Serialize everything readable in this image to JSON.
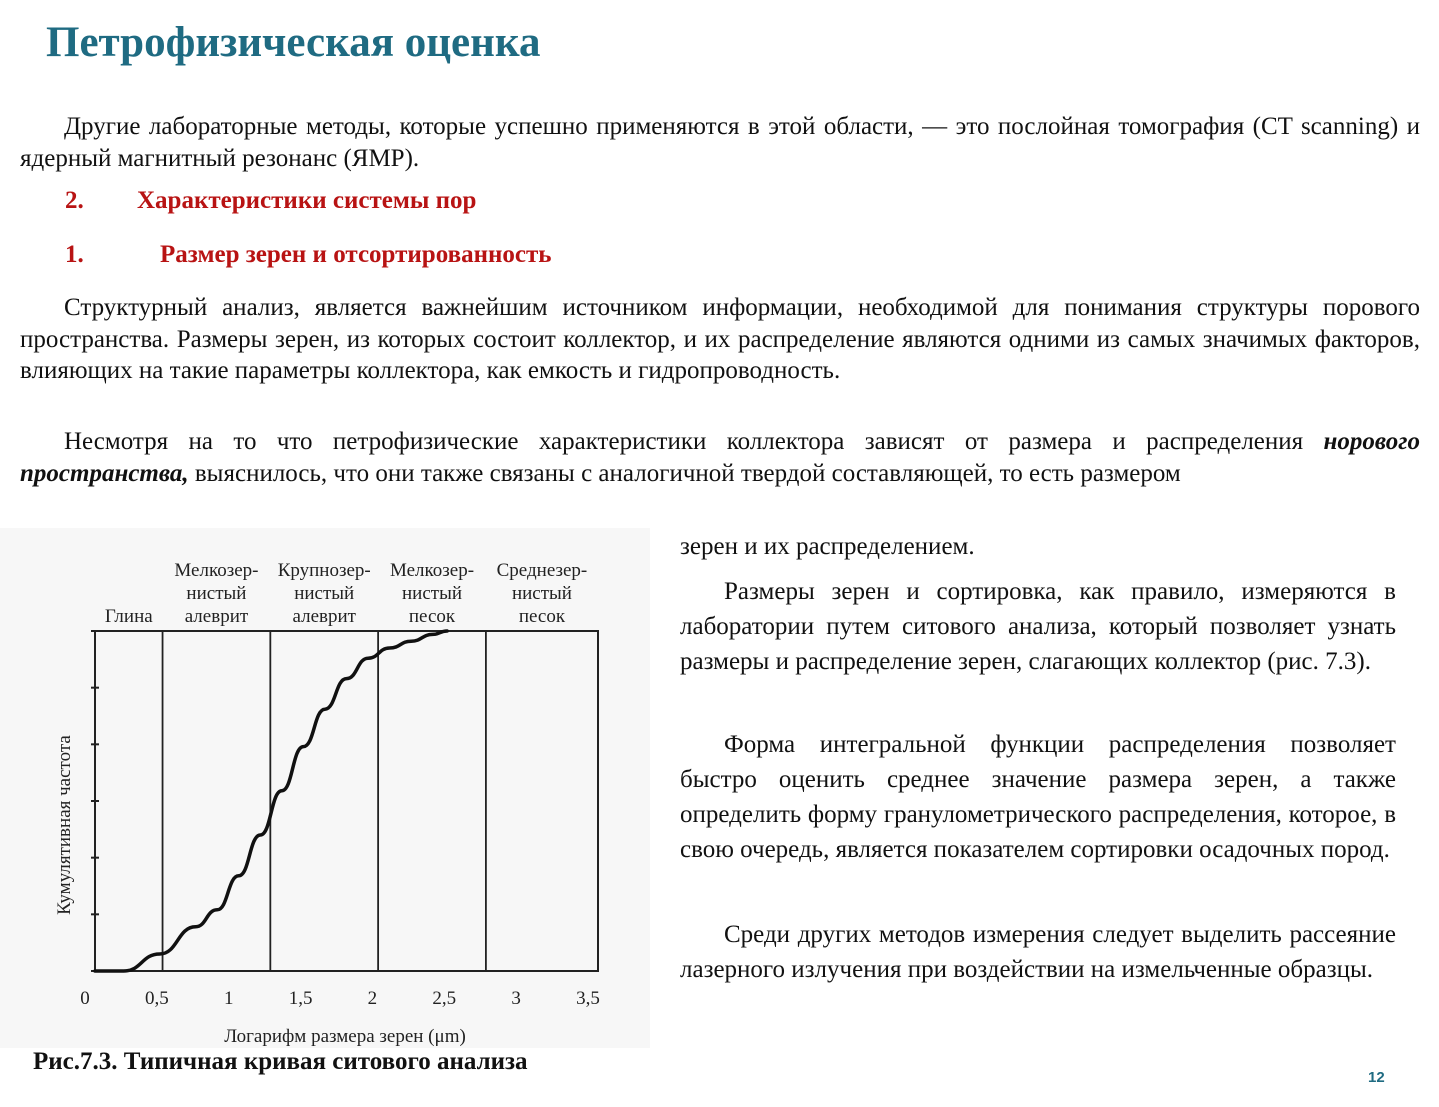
{
  "title": "Петрофизическая оценка",
  "intro": {
    "text": "Другие лабораторные методы, которые успешно применяются в этой области, — это послойная томография (CT scanning) и ядерный магнитный резонанс (ЯМР)."
  },
  "heading_1": {
    "number": "2.",
    "text": "Характеристики системы пор"
  },
  "heading_2": {
    "number": "1.",
    "text": "Размер зерен и отсортированность"
  },
  "para_structure": {
    "text": "Структурный анализ, является важнейшим источником информации, необходимой для понимания структуры порового пространства. Размеры зерен, из которых состоит коллектор, и их распределение являются одними из самых значимых факторов, влияющих на такие параметры коллектора, как емкость и гидропроводность."
  },
  "para_despite": {
    "lead": "Несмотря на то что петрофизические характеристики коллектора зависят от размера и распределения ",
    "emphasis": "норового пространства,",
    "tail": " выяснилось, что они также связаны с аналогичной твердой составляющей, то есть размером"
  },
  "right_column": {
    "continuation": "зерен и их распределением.",
    "p1": "Размеры зерен и сортировка, как правило, измеряются в лаборатории путем ситового анализа, который позволяет узнать размеры и распределение зерен, слагающих коллектор (рис. 7.3).",
    "p2": "Форма интегральной функции распределения позволяет быстро оценить среднее значение размера зерен, а также определить форму гранулометрического распределения, которое, в свою очередь, является показателем сортировки осадочных пород.",
    "p3": "Среди других методов измерения следует выделить рассеяние лазерного излучения при воздействии на измельченные образцы."
  },
  "chart_data": {
    "type": "line",
    "xlabel": "Логарифм размера зерен (μm)",
    "ylabel": "Кумулятивная частота",
    "xlim": [
      0,
      3.5
    ],
    "x_ticks": [
      "0",
      "0,5",
      "1",
      "1,5",
      "2",
      "2,5",
      "3",
      "3,5"
    ],
    "zones": [
      {
        "label_lines": [
          "Глина"
        ],
        "from": 0,
        "to": 0.47
      },
      {
        "label_lines": [
          "Мелкозер-",
          "нистый",
          "алеврит"
        ],
        "from": 0.47,
        "to": 1.22
      },
      {
        "label_lines": [
          "Крупнозер-",
          "нистый",
          "алеврит"
        ],
        "from": 1.22,
        "to": 1.97
      },
      {
        "label_lines": [
          "Мелкозер-",
          "нистый",
          "песок"
        ],
        "from": 1.97,
        "to": 2.72
      },
      {
        "label_lines": [
          "Среднезер-",
          "нистый",
          "песок"
        ],
        "from": 2.72,
        "to": 3.5
      }
    ],
    "boundaries": [
      0.47,
      1.22,
      1.97,
      2.72
    ],
    "series": [
      {
        "x": [
          0.0,
          0.2,
          0.45,
          0.7,
          0.85,
          1.0,
          1.15,
          1.3,
          1.45,
          1.6,
          1.75,
          1.9,
          2.05,
          2.2,
          2.35,
          2.45
        ],
        "values": [
          0.0,
          0.0,
          0.05,
          0.13,
          0.18,
          0.28,
          0.4,
          0.53,
          0.66,
          0.77,
          0.86,
          0.92,
          0.95,
          0.97,
          0.99,
          1.0
        ]
      }
    ]
  },
  "figure_caption": "Рис.7.3. Типичная кривая ситового анализа",
  "page_number": "12",
  "colors": {
    "title": "#1f6b82",
    "heading": "#b81313"
  }
}
